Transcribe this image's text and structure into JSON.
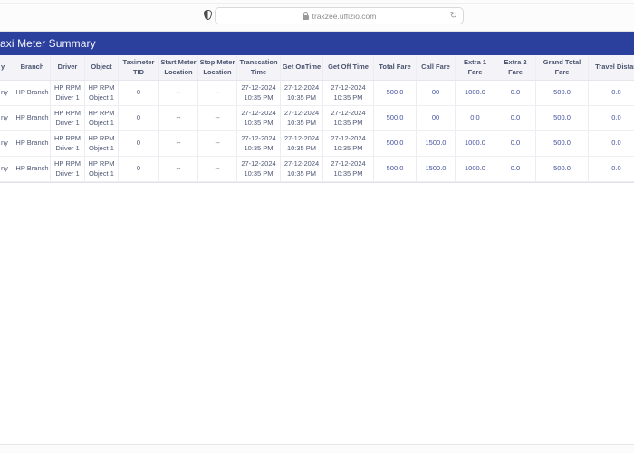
{
  "browser": {
    "url": "trakzee.uffizio.com",
    "reload_glyph": "↻"
  },
  "page": {
    "title": "axi Meter Summary"
  },
  "table": {
    "columns": [
      {
        "key": "company",
        "label": "y",
        "width": 16
      },
      {
        "key": "branch",
        "label": "Branch",
        "width": 40
      },
      {
        "key": "driver",
        "label": "Driver",
        "width": 38
      },
      {
        "key": "object",
        "label": "Object",
        "width": 37
      },
      {
        "key": "taximeter_tid",
        "label": "Taximeter\nTID",
        "width": 45
      },
      {
        "key": "start_meter_location",
        "label": "Start Meter\nLocation",
        "width": 43
      },
      {
        "key": "stop_meter_location",
        "label": "Stop Meter\nLocation",
        "width": 43
      },
      {
        "key": "transcation_time",
        "label": "Transcation\nTime",
        "width": 48
      },
      {
        "key": "get_ontime",
        "label": "Get OnTime",
        "width": 47
      },
      {
        "key": "get_off_time",
        "label": "Get Off Time",
        "width": 56
      },
      {
        "key": "total_fare",
        "label": "Total Fare",
        "width": 47,
        "numeric": true
      },
      {
        "key": "call_fare",
        "label": "Call Fare",
        "width": 43,
        "numeric": true
      },
      {
        "key": "extra1_fare",
        "label": "Extra 1\nFare",
        "width": 44,
        "numeric": true
      },
      {
        "key": "extra2_fare",
        "label": "Extra 2\nFare",
        "width": 45,
        "numeric": true
      },
      {
        "key": "grand_total_fare",
        "label": "Grand Total\nFare",
        "width": 58,
        "numeric": true
      },
      {
        "key": "travel_distance",
        "label": "Travel Distan",
        "width": 62,
        "numeric": true,
        "nowrap": true
      }
    ],
    "rows": [
      [
        "ny",
        "HP Branch",
        "HP RPM\nDriver 1",
        "HP RPM\nObject 1",
        "0",
        "--",
        "--",
        "27-12-2024\n10:35 PM",
        "27-12-2024\n10:35 PM",
        "27-12-2024\n10:35 PM",
        "500.0",
        "00",
        "1000.0",
        "0.0",
        "500.0",
        "0.0"
      ],
      [
        "ny",
        "HP Branch",
        "HP RPM\nDriver 1",
        "HP RPM\nObject 1",
        "0",
        "--",
        "--",
        "27-12-2024\n10:35 PM",
        "27-12-2024\n10:35 PM",
        "27-12-2024\n10:35 PM",
        "500.0",
        "00",
        "0.0",
        "0.0",
        "500.0",
        "0.0"
      ],
      [
        "ny",
        "HP Branch",
        "HP RPM\nDriver 1",
        "HP RPM\nObject 1",
        "0",
        "--",
        "--",
        "27-12-2024\n10:35 PM",
        "27-12-2024\n10:35 PM",
        "27-12-2024\n10:35 PM",
        "500.0",
        "1500.0",
        "1000.0",
        "0.0",
        "500.0",
        "0.0"
      ],
      [
        "ny",
        "HP Branch",
        "HP RPM\nDriver 1",
        "HP RPM\nObject 1",
        "0",
        "--",
        "--",
        "27-12-2024\n10:35 PM",
        "27-12-2024\n10:35 PM",
        "27-12-2024\n10:35 PM",
        "500.0",
        "1500.0",
        "1000.0",
        "0.0",
        "500.0",
        "0.0"
      ]
    ]
  }
}
